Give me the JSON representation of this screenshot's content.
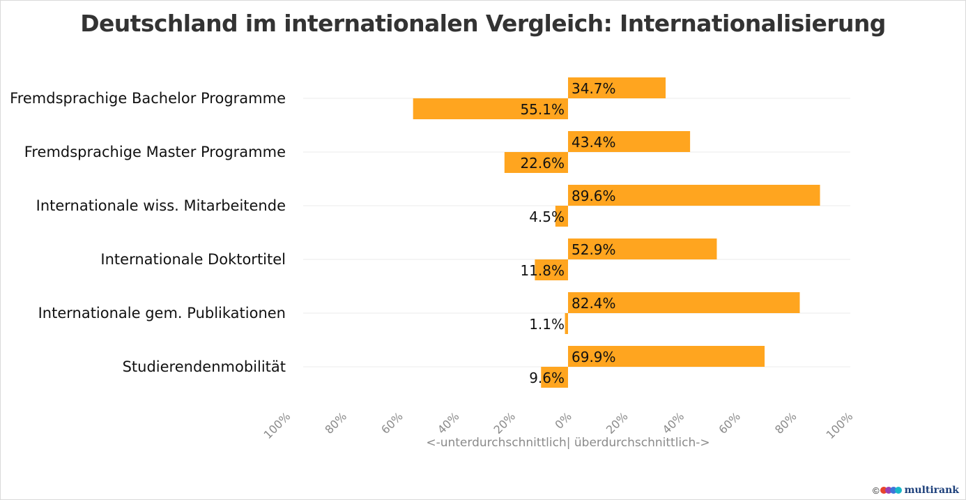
{
  "chart_data": {
    "type": "bar",
    "orientation": "horizontal-diverging",
    "title": "Deutschland im internationalen Vergleich: Internationalisierung",
    "xlabel": "<-unterdurchschnittlich| überdurchschnittlich->",
    "ylabel": "",
    "xlim": [
      -100,
      100
    ],
    "x_ticks": [
      -100,
      -80,
      -60,
      -40,
      -20,
      0,
      20,
      40,
      60,
      80,
      100
    ],
    "x_tick_labels": [
      "100%",
      "80%",
      "60%",
      "40%",
      "20%",
      "0%",
      "20%",
      "40%",
      "60%",
      "80%",
      "100%"
    ],
    "grid": true,
    "categories": [
      "Fremdsprachige Bachelor Programme",
      "Fremdsprachige Master Programme",
      "Internationale wiss. Mitarbeitende",
      "Internationale Doktortitel",
      "Internationale gem. Publikationen",
      "Studierendenmobilität"
    ],
    "series": [
      {
        "name": "überdurchschnittlich",
        "values": [
          34.7,
          43.4,
          89.6,
          52.9,
          82.4,
          69.9
        ],
        "labels": [
          "34.7%",
          "43.4%",
          "89.6%",
          "52.9%",
          "82.4%",
          "69.9%"
        ]
      },
      {
        "name": "unterdurchschnittlich",
        "values": [
          -55.1,
          -22.6,
          -4.5,
          -11.8,
          -1.1,
          -9.6
        ],
        "labels": [
          "55.1%",
          "22.6%",
          "4.5%",
          "11.8%",
          "1.1%",
          "9.6%"
        ]
      }
    ],
    "colors": {
      "bar": "#FFA51F",
      "grid": "#ebebeb"
    }
  },
  "footer": {
    "copyright": "©",
    "logo_text": "multirank",
    "logo_colors": [
      "#e8452c",
      "#9b3fb5",
      "#3f74d9",
      "#17b8c9"
    ]
  }
}
